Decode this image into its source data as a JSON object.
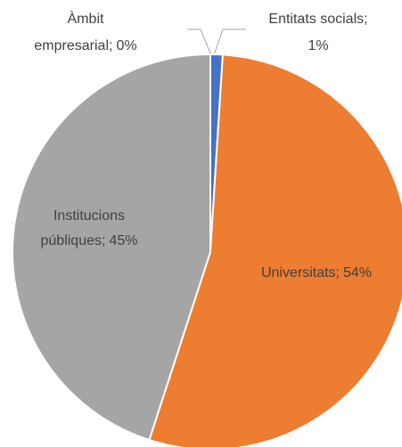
{
  "chart_data": {
    "type": "pie",
    "categories": [
      "Entitats socials",
      "Universitats",
      "Institucions públiques",
      "Àmbit empresarial"
    ],
    "separator": ";",
    "values": [
      1,
      54,
      45,
      0
    ],
    "value_labels": [
      "1%",
      "54%",
      "45%",
      "0%"
    ],
    "colors": [
      "#4472c4",
      "#ed7d31",
      "#a5a5a5",
      "#ffc000"
    ]
  }
}
